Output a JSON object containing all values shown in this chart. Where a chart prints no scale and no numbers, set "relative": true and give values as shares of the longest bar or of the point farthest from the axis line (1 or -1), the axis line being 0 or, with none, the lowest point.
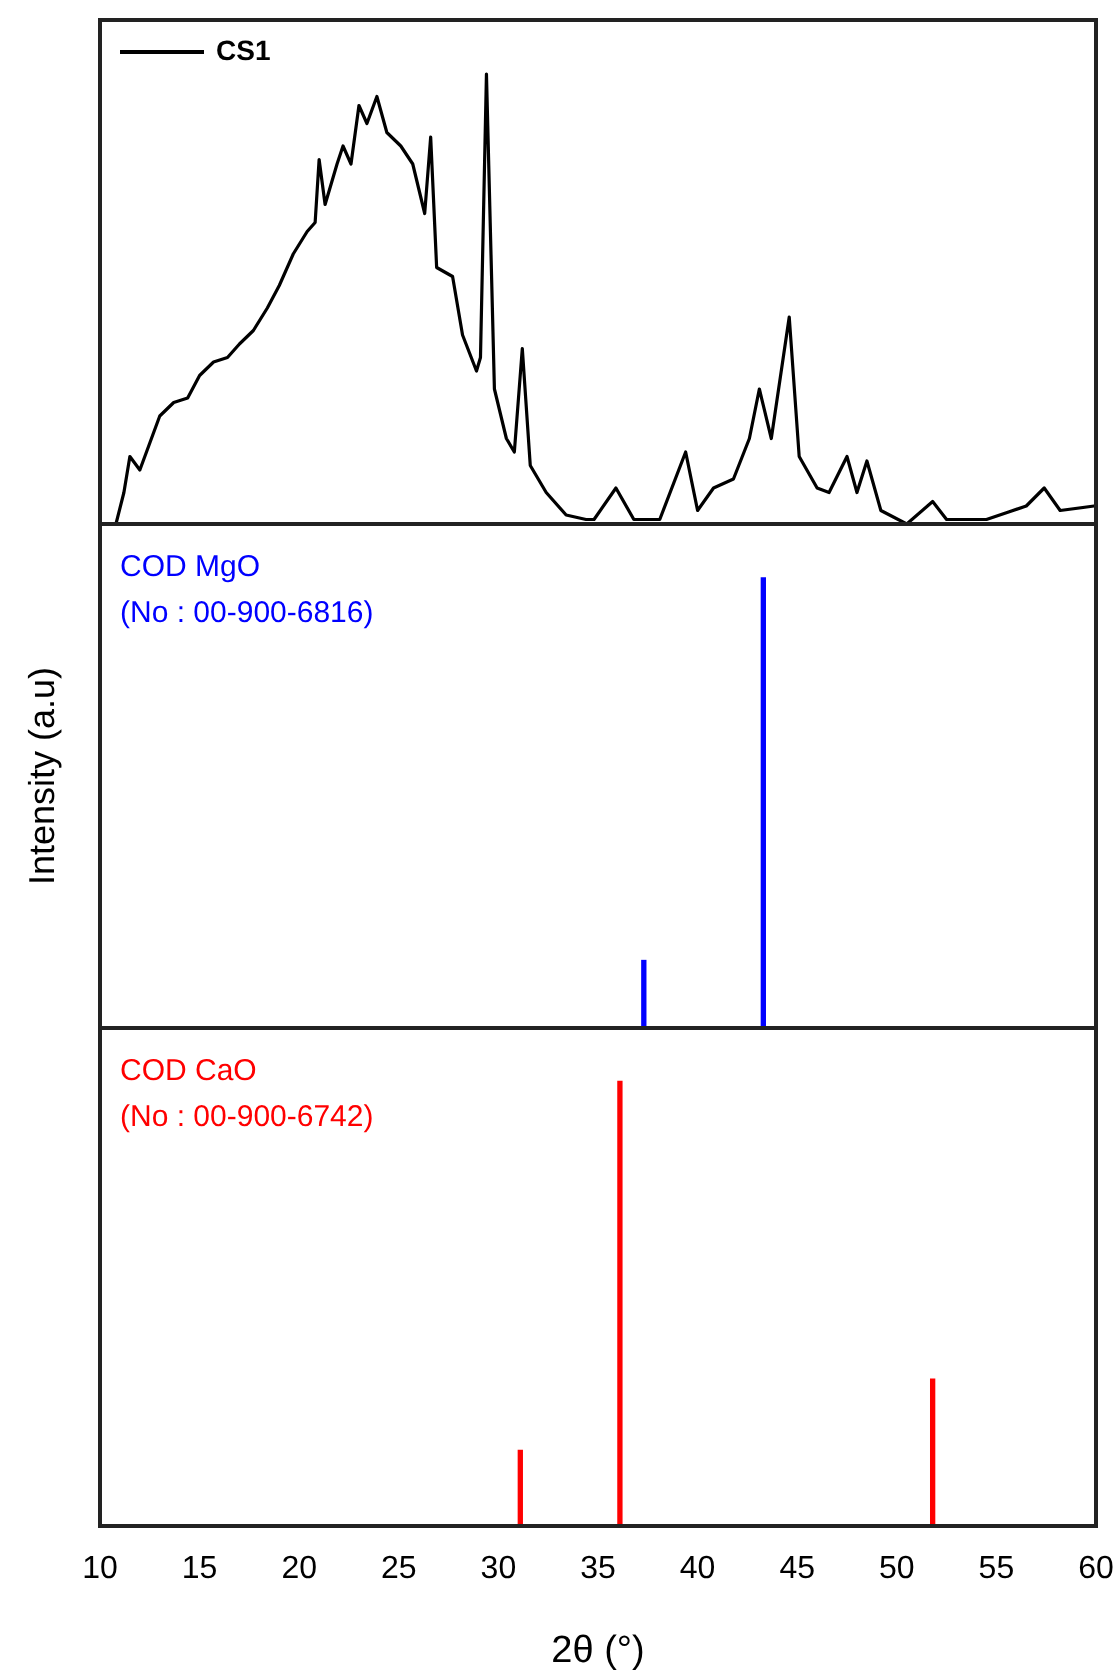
{
  "chart_data": [
    {
      "type": "line",
      "relative": true,
      "xlim": [
        10,
        60
      ],
      "xticks": [
        10,
        15,
        20,
        25,
        30,
        35,
        40,
        45,
        50,
        55,
        60
      ],
      "tick_labels": false,
      "legend": "top left",
      "series": [
        {
          "name": "CS1",
          "color": "#000000",
          "x": [
            10.2,
            10.8,
            11.2,
            11.5,
            12.0,
            12.5,
            13.0,
            13.7,
            14.4,
            15.0,
            15.7,
            16.4,
            17.0,
            17.7,
            18.4,
            19.0,
            19.7,
            20.4,
            20.8,
            21.0,
            21.3,
            21.9,
            22.2,
            22.6,
            23.0,
            23.4,
            23.9,
            24.4,
            25.1,
            25.7,
            26.3,
            26.6,
            26.9,
            27.7,
            28.2,
            28.9,
            29.1,
            29.4,
            29.8,
            30.4,
            30.8,
            31.2,
            31.6,
            32.4,
            33.4,
            34.4,
            34.8,
            35.9,
            36.8,
            38.1,
            39.4,
            40.0,
            40.8,
            41.8,
            42.6,
            43.1,
            43.7,
            44.6,
            45.1,
            46.0,
            46.6,
            47.5,
            48.0,
            48.5,
            49.2,
            50.5,
            51.8,
            52.5,
            54.5,
            56.5,
            57.4,
            58.2,
            59.9
          ],
          "values": [
            0,
            0,
            0.07,
            0.15,
            0.12,
            0.18,
            0.24,
            0.27,
            0.28,
            0.33,
            0.36,
            0.37,
            0.4,
            0.43,
            0.48,
            0.53,
            0.6,
            0.65,
            0.67,
            0.81,
            0.71,
            0.8,
            0.84,
            0.8,
            0.93,
            0.89,
            0.95,
            0.87,
            0.84,
            0.8,
            0.69,
            0.86,
            0.57,
            0.55,
            0.42,
            0.34,
            0.37,
            1.0,
            0.3,
            0.19,
            0.16,
            0.39,
            0.13,
            0.07,
            0.02,
            0.01,
            0.01,
            0.08,
            0.01,
            0.01,
            0.16,
            0.03,
            0.08,
            0.1,
            0.19,
            0.3,
            0.19,
            0.46,
            0.15,
            0.08,
            0.07,
            0.15,
            0.07,
            0.14,
            0.03,
            0,
            0.05,
            0.01,
            0.01,
            0.04,
            0.08,
            0.03,
            0.04
          ]
        }
      ]
    },
    {
      "type": "bar",
      "relative": true,
      "xlim": [
        10,
        60
      ],
      "xticks": [
        10,
        15,
        20,
        25,
        30,
        35,
        40,
        45,
        50,
        55,
        60
      ],
      "tick_labels": false,
      "ylabel": "Intensity (a.u)",
      "series": [
        {
          "name": "COD MgO\n(No : 00-900-6816)",
          "color": "#0000ff",
          "x": [
            37.3,
            43.3
          ],
          "values": [
            0.15,
            1
          ]
        }
      ]
    },
    {
      "type": "bar",
      "relative": true,
      "xlim": [
        10,
        60
      ],
      "xticks": [
        10,
        15,
        20,
        25,
        30,
        35,
        40,
        45,
        50,
        55,
        60
      ],
      "tick_labels": "x",
      "xlabel": "2θ (°)",
      "series": [
        {
          "name": "COD CaO\n(No : 00-900-6742)",
          "color": "#ff0000",
          "x": [
            31.1,
            36.1,
            51.8
          ],
          "values": [
            0.17,
            1,
            0.33
          ]
        }
      ]
    }
  ]
}
